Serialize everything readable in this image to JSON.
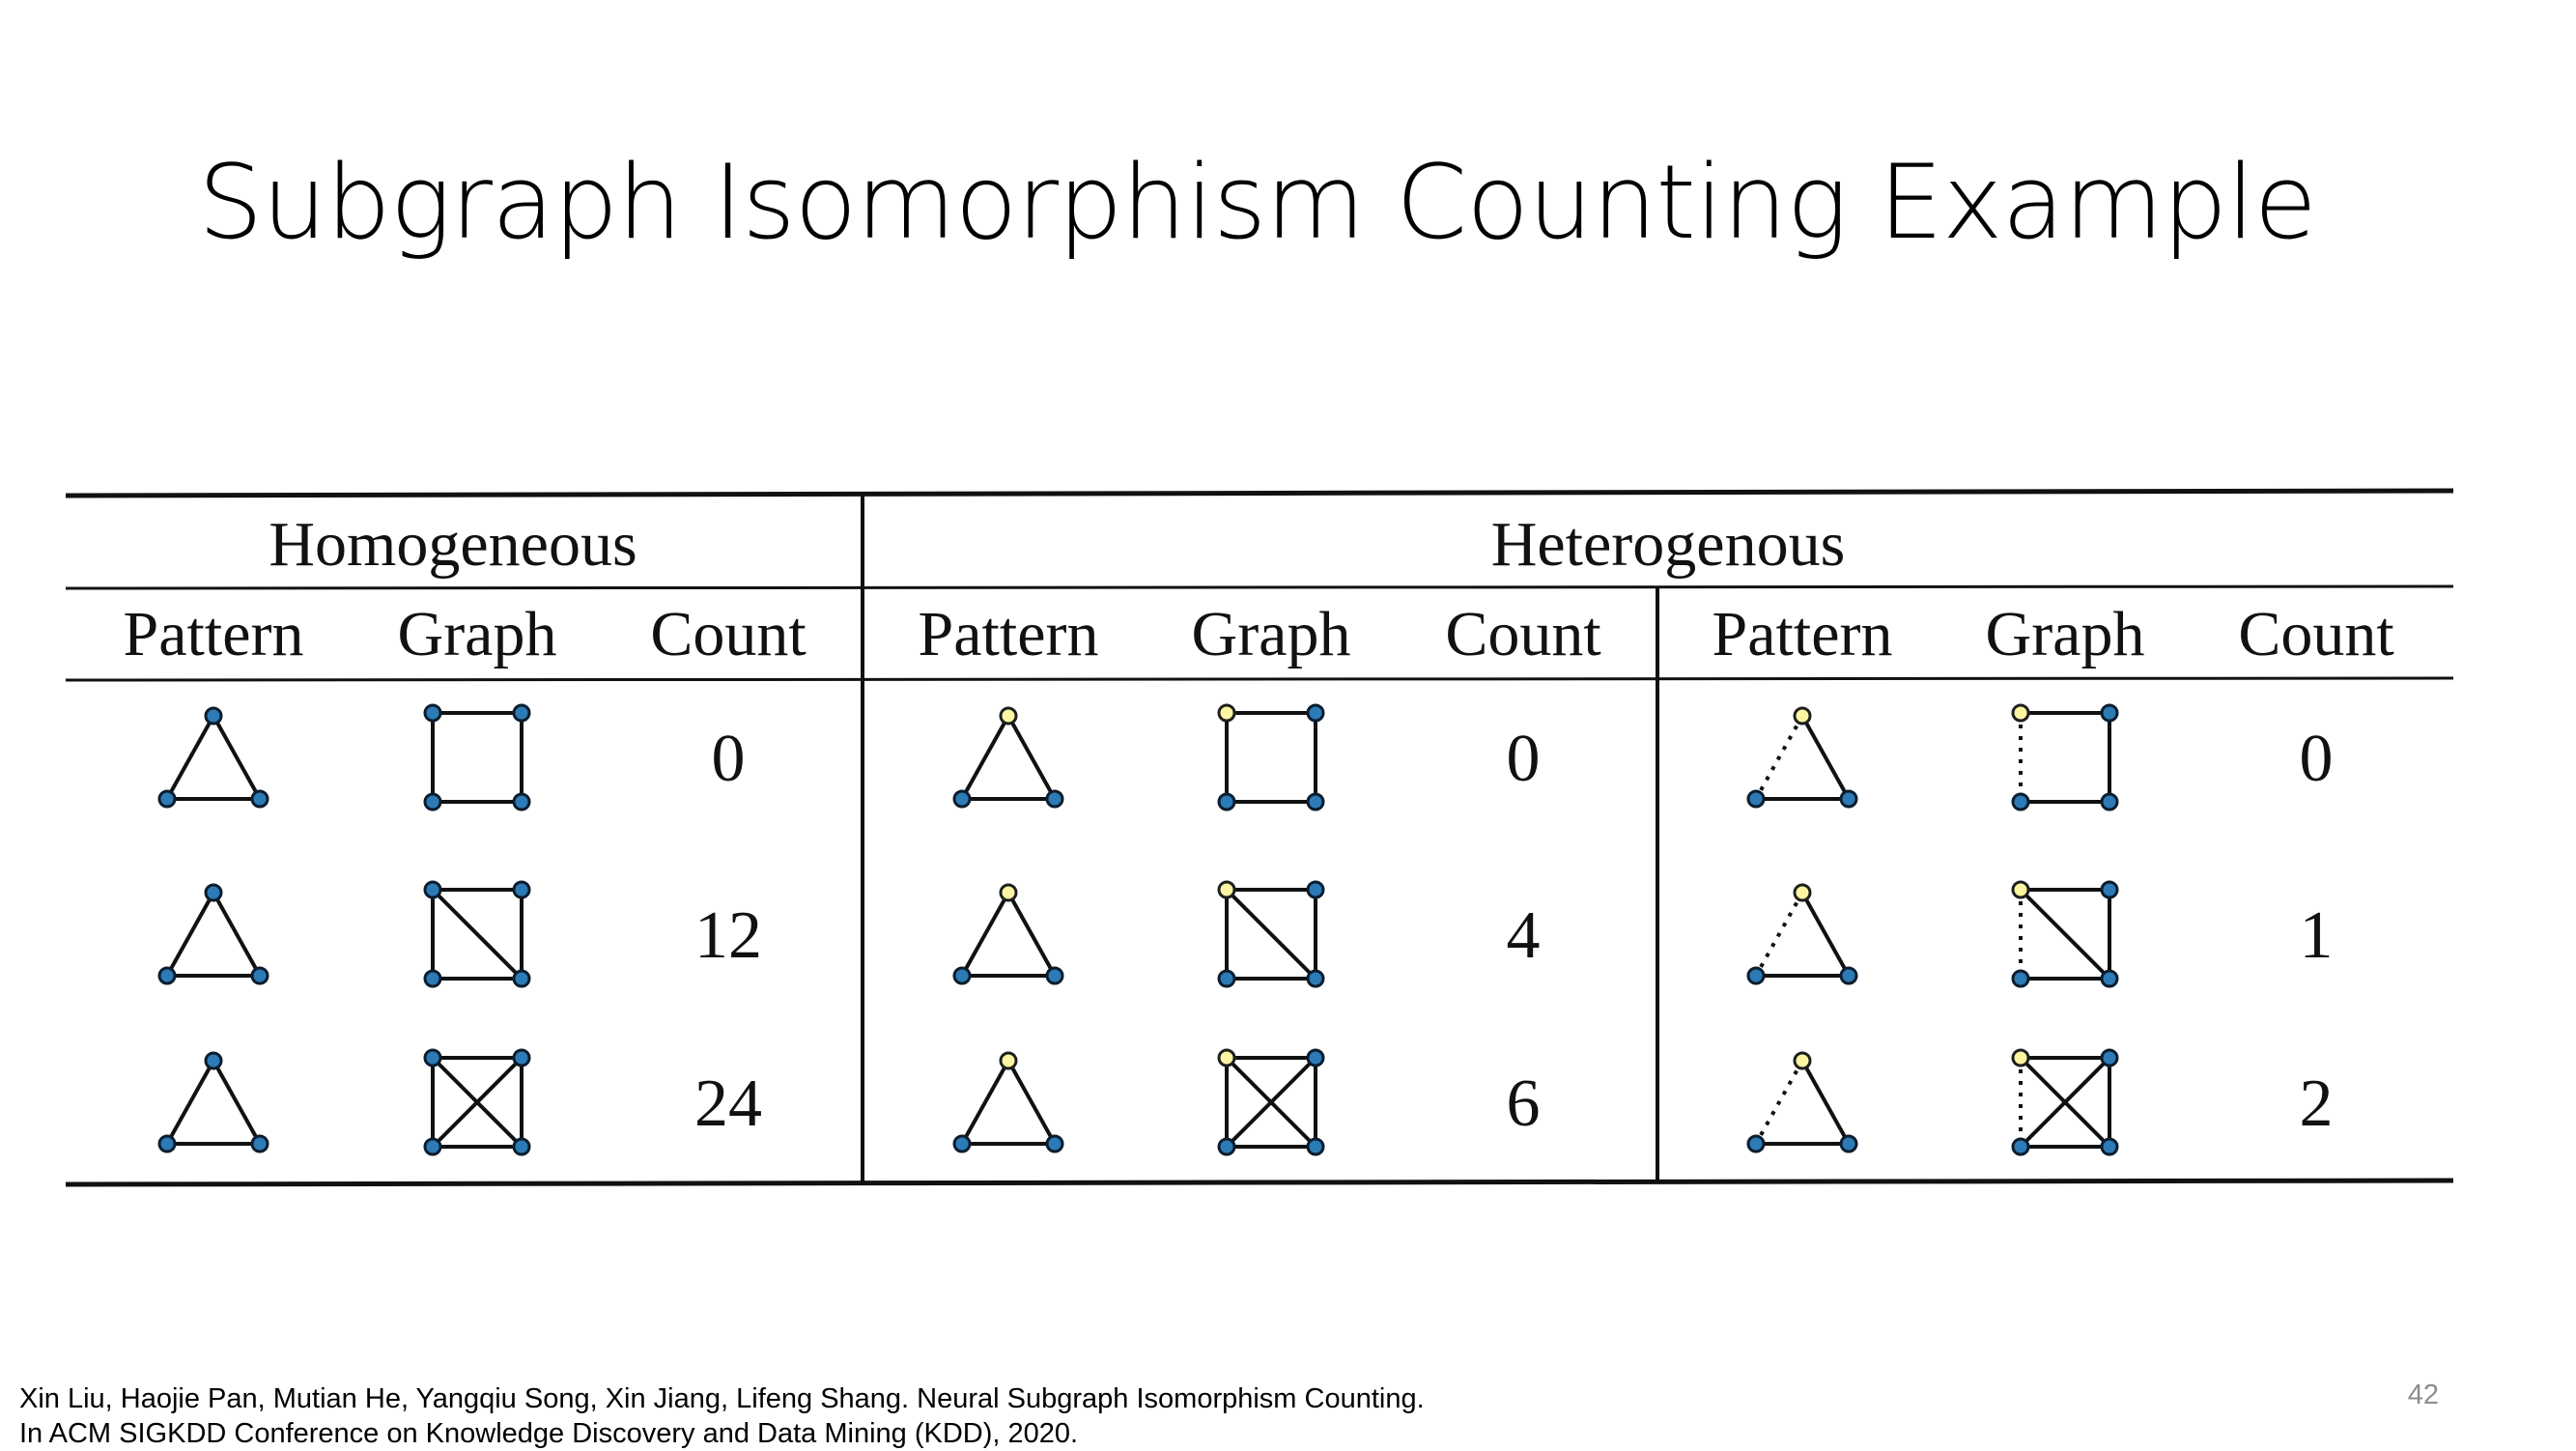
{
  "slide": {
    "title": "Subgraph Isomorphism Counting Example",
    "page_number": "42"
  },
  "table": {
    "groups": [
      "Homogeneous",
      "Heterogenous"
    ],
    "column_headers": [
      "Pattern",
      "Graph",
      "Count",
      "Pattern",
      "Graph",
      "Count",
      "Pattern",
      "Graph",
      "Count"
    ],
    "blocks": [
      {
        "group": "Homogeneous",
        "pattern": "triangle",
        "pattern_top_node_color": "blue",
        "pattern_dashed_edge": false,
        "rows": [
          {
            "graph": "square",
            "count": "0"
          },
          {
            "graph": "square-with-diagonal",
            "count": "12"
          },
          {
            "graph": "complete-4",
            "count": "24"
          }
        ]
      },
      {
        "group": "Heterogenous",
        "pattern": "triangle",
        "pattern_top_node_color": "yellow",
        "pattern_dashed_edge": false,
        "rows": [
          {
            "graph": "square",
            "count": "0"
          },
          {
            "graph": "square-with-diagonal",
            "count": "4"
          },
          {
            "graph": "complete-4",
            "count": "6"
          }
        ]
      },
      {
        "group": "Heterogenous",
        "pattern": "triangle",
        "pattern_top_node_color": "yellow",
        "pattern_dashed_edge": true,
        "rows": [
          {
            "graph": "square",
            "count": "0"
          },
          {
            "graph": "square-with-diagonal",
            "count": "1"
          },
          {
            "graph": "complete-4",
            "count": "2"
          }
        ]
      }
    ]
  },
  "colors": {
    "node_blue": "#2c7bb6",
    "node_yellow": "#fdf6a0",
    "edge": "#111111"
  },
  "citation": {
    "line1": "Xin Liu, Haojie Pan, Mutian He, Yangqiu Song, Xin Jiang, Lifeng Shang. Neural Subgraph Isomorphism Counting.",
    "line2": "In ACM SIGKDD Conference on Knowledge Discovery and Data Mining (KDD), 2020."
  }
}
